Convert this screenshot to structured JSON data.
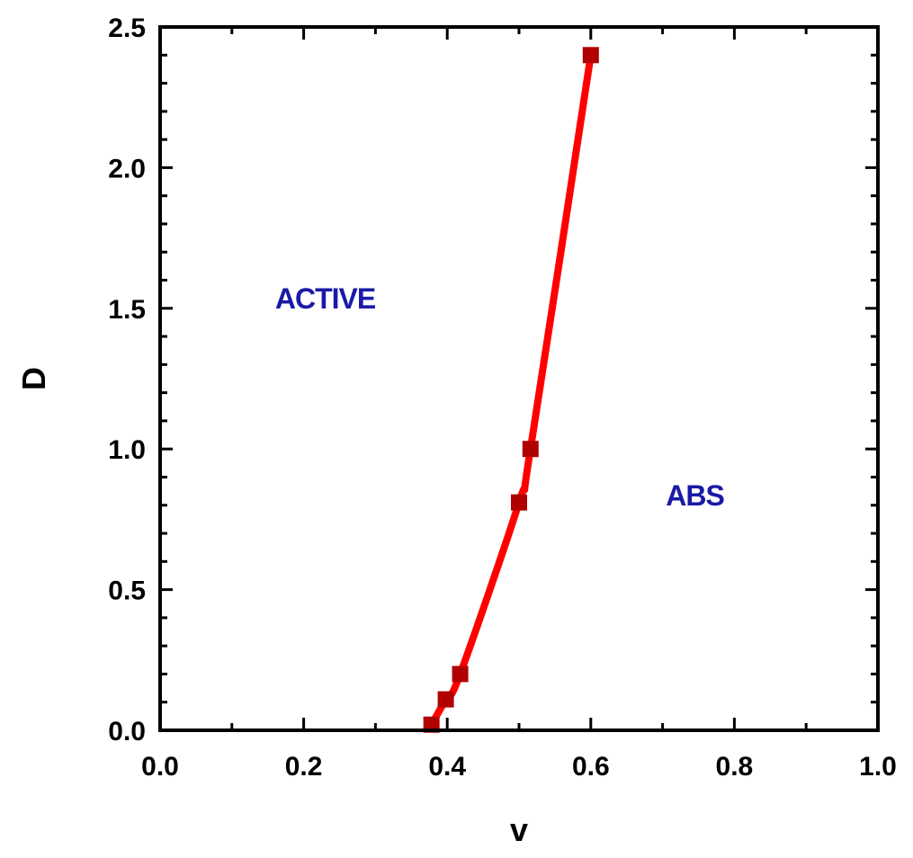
{
  "chart_data": {
    "type": "line",
    "xlabel": "v",
    "ylabel": "D",
    "xlim": [
      0.0,
      1.0
    ],
    "ylim": [
      0.0,
      2.5
    ],
    "x_ticks": [
      "0.0",
      "0.2",
      "0.4",
      "0.6",
      "0.8",
      "1.0"
    ],
    "y_ticks": [
      "0.0",
      "0.5",
      "1.0",
      "1.5",
      "2.0",
      "2.5"
    ],
    "grid": false,
    "series": [
      {
        "marker": "square",
        "color": "#ff0000",
        "marker_color": "#b00000",
        "points": [
          {
            "x": 0.378,
            "y": 0.02
          },
          {
            "x": 0.398,
            "y": 0.11
          },
          {
            "x": 0.418,
            "y": 0.2
          },
          {
            "x": 0.5,
            "y": 0.81
          },
          {
            "x": 0.516,
            "y": 1.0
          },
          {
            "x": 0.6,
            "y": 2.4
          }
        ]
      }
    ],
    "annotations": [
      {
        "text": "ACTIVE",
        "x": 0.23,
        "y": 1.5,
        "color": "#1a1aa6"
      },
      {
        "text": "ABS",
        "x": 0.745,
        "y": 0.8,
        "color": "#1a1aa6"
      }
    ]
  }
}
